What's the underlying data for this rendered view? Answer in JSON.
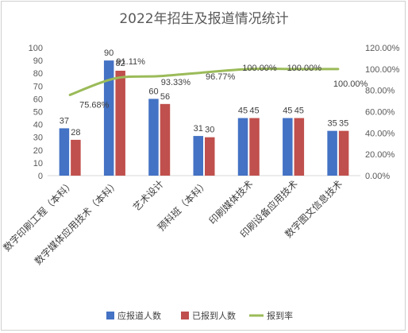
{
  "chart_data": {
    "type": "bar",
    "title": "2022年招生及报道情况统计",
    "categories": [
      "数字印刷工程（本科）",
      "数字媒体应用技术（本科）",
      "艺术设计",
      "预科班（本科）",
      "印刷媒体技术",
      "印刷设备应用技术",
      "数字图文信息技术"
    ],
    "series": [
      {
        "name": "应报道人数",
        "type": "bar",
        "axis": "left",
        "color": "#4472c4",
        "values": [
          37,
          90,
          60,
          31,
          45,
          45,
          35
        ]
      },
      {
        "name": "已报到人数",
        "type": "bar",
        "axis": "left",
        "color": "#c0504d",
        "values": [
          28,
          82,
          56,
          30,
          45,
          45,
          35
        ]
      },
      {
        "name": "报到率",
        "type": "line",
        "axis": "right",
        "color": "#9bbb59",
        "values": [
          0.7568,
          0.9111,
          0.9333,
          0.9677,
          1.0,
          1.0,
          1.0
        ]
      }
    ],
    "bar_labels": [
      [
        "37",
        "90",
        "60",
        "31",
        "45",
        "45",
        "35"
      ],
      [
        "28",
        "82",
        "56",
        "30",
        "45",
        "45",
        "35"
      ]
    ],
    "rate_labels": [
      "75.68%",
      "91.11%",
      "93.33%",
      "96.77%",
      "100.00%",
      "100.00%",
      "100.00%"
    ],
    "left_axis": {
      "min": 0,
      "max": 100,
      "step": 10,
      "ticks": [
        "0",
        "10",
        "20",
        "30",
        "40",
        "50",
        "60",
        "70",
        "80",
        "90",
        "100"
      ]
    },
    "right_axis": {
      "min": 0,
      "max": 1.2,
      "step": 0.2,
      "ticks": [
        "0.00%",
        "20.00%",
        "40.00%",
        "60.00%",
        "80.00%",
        "100.00%",
        "120.00%"
      ]
    },
    "legend_position": "bottom",
    "grid": false
  }
}
